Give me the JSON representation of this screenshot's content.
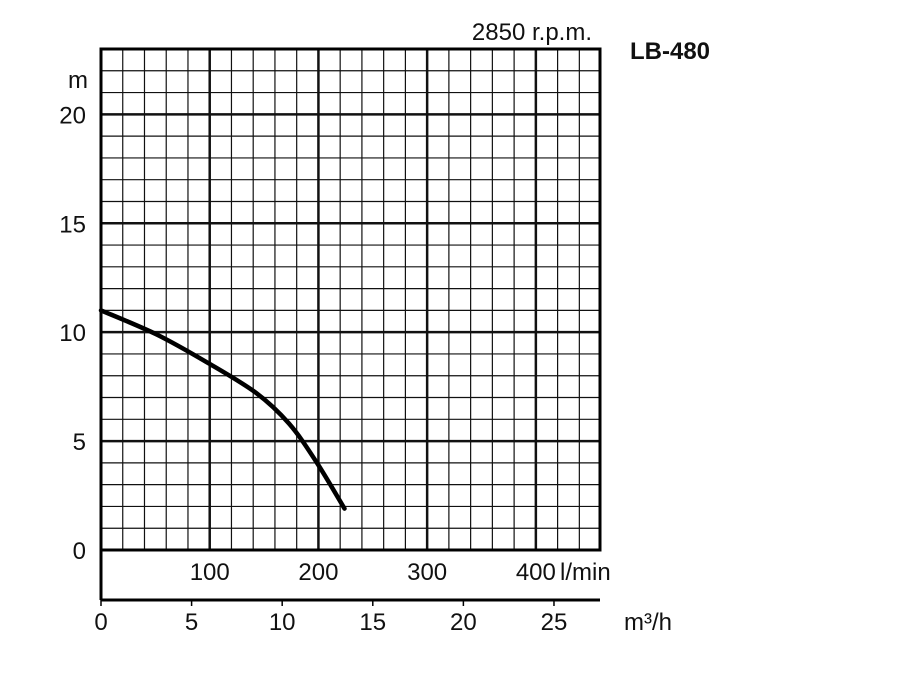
{
  "chart_data": {
    "type": "line",
    "title": "LB-480",
    "subtitle": "2850 r.p.m.",
    "ylabel": "m",
    "xlabel": "l/min",
    "x2label": "m³/h",
    "ylim": [
      0,
      23
    ],
    "xlim": [
      0,
      459
    ],
    "yticks": [
      0,
      5,
      10,
      15,
      20
    ],
    "xticks": [
      100,
      200,
      300,
      400
    ],
    "x2ticks": [
      0,
      5,
      10,
      15,
      20,
      25
    ],
    "grid": true,
    "grid_minor_x": 20,
    "grid_minor_y": 1,
    "series": [
      {
        "x": [
          0,
          51,
          98,
          143,
          173,
          198,
          224
        ],
        "y": [
          11.0,
          9.9,
          8.6,
          7.2,
          5.8,
          4.05,
          1.9
        ]
      }
    ]
  }
}
